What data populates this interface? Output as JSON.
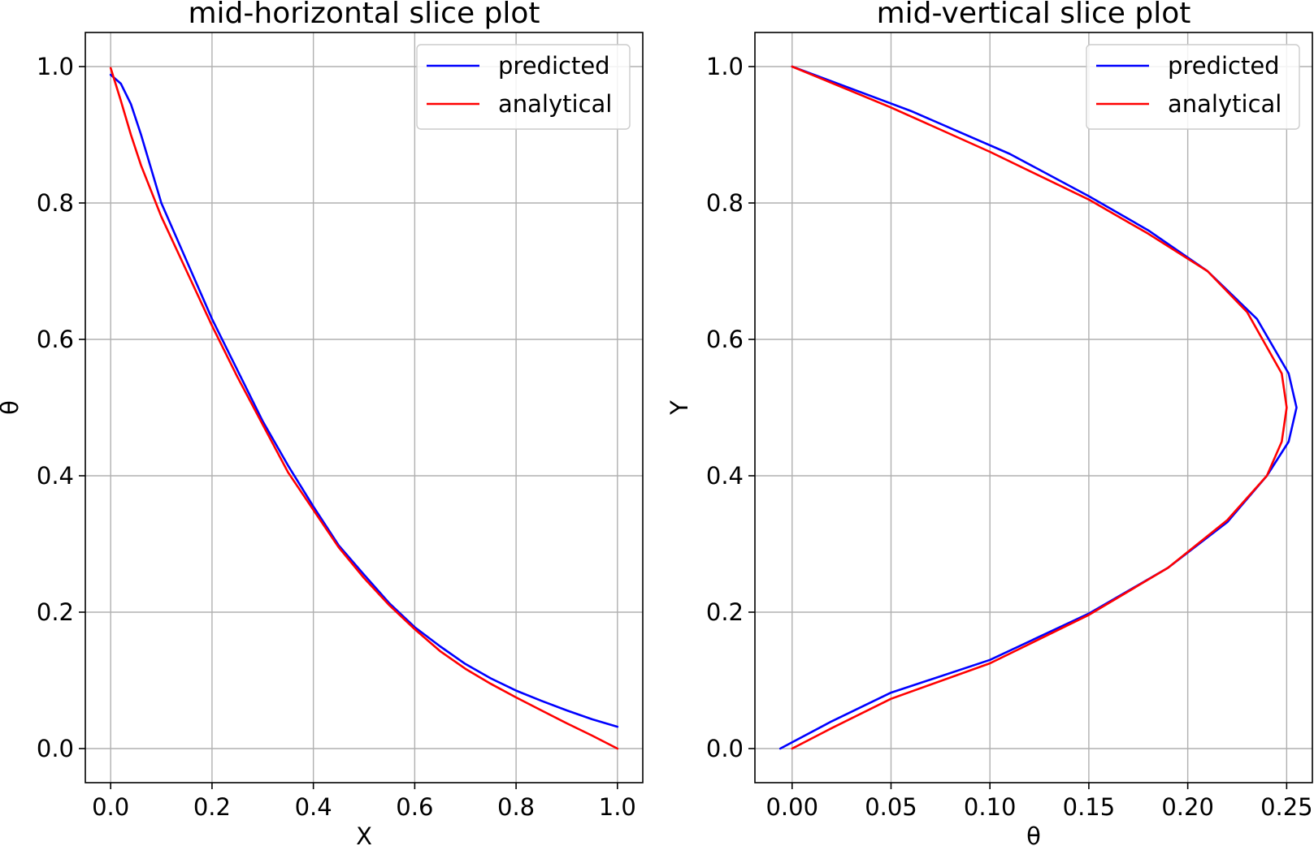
{
  "chart_data": [
    {
      "type": "line",
      "title": "mid-horizontal slice plot",
      "xlabel": "X",
      "ylabel": "θ",
      "xlim": [
        -0.05,
        1.05
      ],
      "ylim": [
        -0.05,
        1.05
      ],
      "xticks": [
        0.0,
        0.2,
        0.4,
        0.6,
        0.8,
        1.0
      ],
      "xtick_labels": [
        "0.0",
        "0.2",
        "0.4",
        "0.6",
        "0.8",
        "1.0"
      ],
      "yticks": [
        0.0,
        0.2,
        0.4,
        0.6,
        0.8,
        1.0
      ],
      "ytick_labels": [
        "0.0",
        "0.2",
        "0.4",
        "0.6",
        "0.8",
        "1.0"
      ],
      "grid": true,
      "legend_position": "upper right",
      "series": [
        {
          "name": "predicted",
          "color": "#0000ff",
          "x": [
            0.0,
            0.02,
            0.04,
            0.06,
            0.1,
            0.15,
            0.2,
            0.25,
            0.3,
            0.35,
            0.4,
            0.45,
            0.5,
            0.55,
            0.6,
            0.65,
            0.7,
            0.75,
            0.8,
            0.85,
            0.9,
            0.95,
            1.0
          ],
          "y": [
            0.988,
            0.975,
            0.945,
            0.9,
            0.8,
            0.715,
            0.63,
            0.555,
            0.48,
            0.415,
            0.355,
            0.298,
            0.255,
            0.213,
            0.178,
            0.15,
            0.124,
            0.103,
            0.085,
            0.07,
            0.056,
            0.043,
            0.032
          ]
        },
        {
          "name": "analytical",
          "color": "#ff0000",
          "x": [
            0.0,
            0.02,
            0.04,
            0.06,
            0.1,
            0.15,
            0.2,
            0.25,
            0.3,
            0.35,
            0.4,
            0.45,
            0.5,
            0.55,
            0.6,
            0.65,
            0.7,
            0.75,
            0.8,
            0.85,
            0.9,
            0.95,
            1.0
          ],
          "y": [
            0.998,
            0.95,
            0.9,
            0.855,
            0.78,
            0.7,
            0.62,
            0.545,
            0.475,
            0.405,
            0.35,
            0.295,
            0.25,
            0.21,
            0.175,
            0.143,
            0.117,
            0.095,
            0.075,
            0.056,
            0.037,
            0.019,
            0.0
          ]
        }
      ]
    },
    {
      "type": "line",
      "title": "mid-vertical slice plot",
      "xlabel": "θ",
      "ylabel": "Y",
      "xlim": [
        -0.0188,
        0.263
      ],
      "ylim": [
        -0.05,
        1.05
      ],
      "xticks": [
        0.0,
        0.05,
        0.1,
        0.15,
        0.2,
        0.25
      ],
      "xtick_labels": [
        "0.00",
        "0.05",
        "0.10",
        "0.15",
        "0.20",
        "0.25"
      ],
      "yticks": [
        0.0,
        0.2,
        0.4,
        0.6,
        0.8,
        1.0
      ],
      "ytick_labels": [
        "0.0",
        "0.2",
        "0.4",
        "0.6",
        "0.8",
        "1.0"
      ],
      "grid": true,
      "legend_position": "upper right",
      "series": [
        {
          "name": "predicted",
          "color": "#0000ff",
          "x": [
            -0.006,
            0.02,
            0.05,
            0.1,
            0.15,
            0.19,
            0.22,
            0.24,
            0.251,
            0.255,
            0.251,
            0.235,
            0.21,
            0.18,
            0.15,
            0.11,
            0.06,
            0.0
          ],
          "y": [
            0.0,
            0.04,
            0.082,
            0.13,
            0.198,
            0.265,
            0.332,
            0.4,
            0.45,
            0.5,
            0.55,
            0.63,
            0.7,
            0.76,
            0.81,
            0.872,
            0.935,
            1.0
          ]
        },
        {
          "name": "analytical",
          "color": "#ff0000",
          "x": [
            0.0,
            0.02,
            0.05,
            0.1,
            0.15,
            0.19,
            0.22,
            0.24,
            0.2475,
            0.25,
            0.2475,
            0.23,
            0.21,
            0.18,
            0.15,
            0.1,
            0.05,
            0.0
          ],
          "y": [
            0.0,
            0.03,
            0.073,
            0.125,
            0.196,
            0.265,
            0.335,
            0.4,
            0.45,
            0.5,
            0.55,
            0.64,
            0.7,
            0.755,
            0.805,
            0.875,
            0.94,
            1.0
          ]
        }
      ]
    }
  ]
}
